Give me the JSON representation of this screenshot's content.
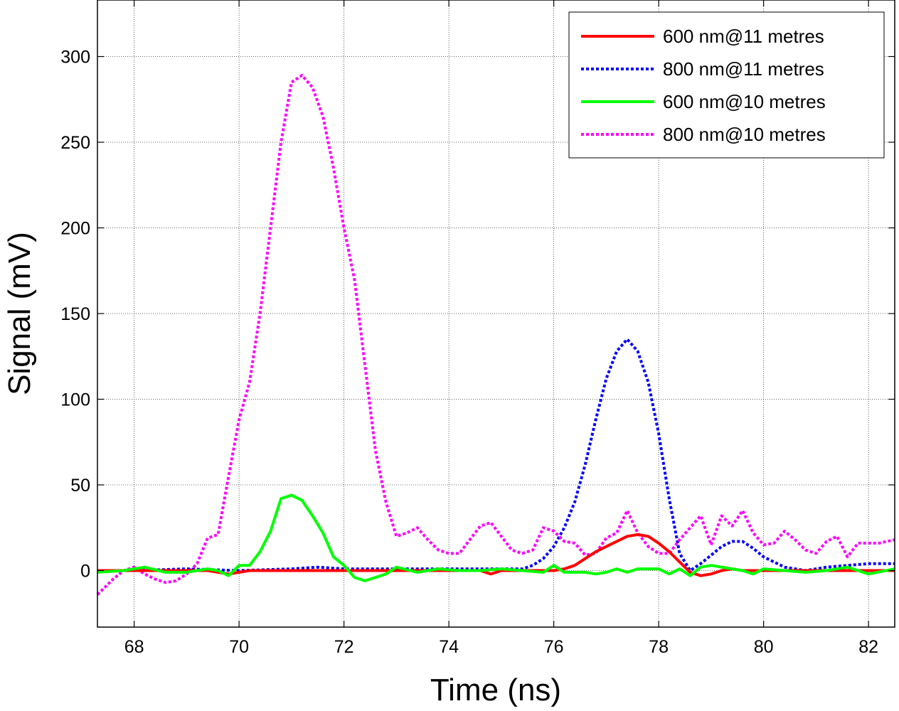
{
  "chart_data": {
    "type": "line",
    "title": "",
    "xlabel": "Time (ns)",
    "ylabel": "Signal (mV)",
    "xlim": [
      67.3,
      82.5
    ],
    "ylim": [
      -33,
      333
    ],
    "xticks": [
      68,
      70,
      72,
      74,
      76,
      78,
      80,
      82
    ],
    "yticks": [
      0,
      50,
      100,
      150,
      200,
      250,
      300
    ],
    "grid": true,
    "legend_position": "top-right",
    "series": [
      {
        "name": "600 nm@11 metres",
        "color": "#ff0000",
        "style": "solid",
        "x": [
          67.3,
          68.0,
          69.0,
          69.4,
          69.8,
          70.2,
          71.0,
          72.0,
          73.0,
          74.0,
          74.6,
          74.8,
          75.0,
          76.0,
          76.2,
          76.4,
          76.6,
          76.8,
          77.0,
          77.2,
          77.4,
          77.6,
          77.8,
          78.0,
          78.2,
          78.4,
          78.6,
          78.8,
          79.0,
          79.2,
          79.4,
          79.6,
          80.0,
          81.0,
          82.0,
          82.5
        ],
        "y": [
          0,
          0,
          0,
          0,
          -2,
          0,
          0,
          0,
          0,
          0,
          0,
          -2,
          0,
          0,
          1,
          3,
          7,
          11,
          14,
          17,
          20,
          21,
          20,
          16,
          11,
          5,
          -1,
          -3,
          -2,
          0,
          1,
          0,
          0,
          0,
          0,
          0
        ]
      },
      {
        "name": "800 nm@11 metres",
        "color": "#0000ff",
        "style": "dotted",
        "x": [
          67.3,
          68.0,
          69.0,
          70.0,
          71.0,
          71.5,
          72.0,
          73.0,
          74.0,
          75.0,
          75.4,
          75.6,
          75.8,
          76.0,
          76.2,
          76.4,
          76.6,
          76.8,
          77.0,
          77.2,
          77.4,
          77.6,
          77.8,
          78.0,
          78.2,
          78.4,
          78.6,
          78.8,
          79.0,
          79.2,
          79.4,
          79.6,
          79.8,
          80.0,
          80.4,
          80.8,
          81.2,
          81.6,
          82.0,
          82.5
        ],
        "y": [
          0,
          0,
          1,
          0,
          1,
          2,
          1,
          1,
          1,
          1,
          1,
          3,
          7,
          14,
          25,
          40,
          62,
          88,
          112,
          128,
          135,
          128,
          110,
          80,
          42,
          10,
          0,
          4,
          9,
          14,
          17,
          17,
          13,
          8,
          2,
          0,
          2,
          3,
          4,
          4
        ]
      },
      {
        "name": "600 nm@10 metres",
        "color": "#00ff00",
        "style": "solid",
        "x": [
          67.3,
          67.8,
          68.2,
          68.6,
          69.0,
          69.4,
          69.6,
          69.8,
          70.0,
          70.2,
          70.4,
          70.6,
          70.8,
          71.0,
          71.2,
          71.4,
          71.6,
          71.8,
          72.0,
          72.2,
          72.4,
          72.6,
          72.8,
          73.0,
          73.4,
          73.8,
          74.2,
          74.6,
          75.0,
          75.4,
          75.8,
          76.0,
          76.2,
          76.6,
          76.8,
          77.0,
          77.2,
          77.4,
          77.6,
          78.0,
          78.2,
          78.4,
          78.6,
          78.8,
          79.0,
          79.2,
          79.6,
          79.8,
          80.0,
          80.4,
          80.8,
          81.2,
          81.6,
          82.0,
          82.5
        ],
        "y": [
          -1,
          0,
          2,
          -1,
          -1,
          1,
          0,
          -3,
          3,
          3,
          11,
          23,
          42,
          44,
          41,
          32,
          22,
          8,
          3,
          -4,
          -6,
          -4,
          -2,
          2,
          -1,
          1,
          0,
          0,
          1,
          0,
          -1,
          3,
          -1,
          -1,
          -2,
          -1,
          1,
          -1,
          1,
          1,
          -2,
          1,
          -3,
          2,
          3,
          2,
          0,
          -2,
          1,
          0,
          -1,
          0,
          2,
          -2,
          1
        ]
      },
      {
        "name": "800 nm@10 metres",
        "color": "#ff00ff",
        "style": "dotted",
        "x": [
          67.3,
          67.6,
          67.8,
          68.0,
          68.2,
          68.4,
          68.6,
          68.8,
          69.0,
          69.2,
          69.4,
          69.6,
          69.8,
          70.0,
          70.2,
          70.4,
          70.6,
          70.8,
          71.0,
          71.2,
          71.4,
          71.6,
          71.8,
          72.0,
          72.2,
          72.4,
          72.6,
          72.8,
          73.0,
          73.2,
          73.4,
          73.6,
          73.8,
          74.0,
          74.2,
          74.4,
          74.6,
          74.8,
          75.0,
          75.2,
          75.4,
          75.6,
          75.8,
          76.0,
          76.2,
          76.4,
          76.6,
          76.8,
          77.0,
          77.2,
          77.4,
          77.6,
          77.8,
          78.0,
          78.2,
          78.4,
          78.6,
          78.8,
          79.0,
          79.2,
          79.4,
          79.6,
          79.8,
          80.0,
          80.2,
          80.4,
          80.6,
          80.8,
          81.0,
          81.2,
          81.4,
          81.6,
          81.8,
          82.0,
          82.2,
          82.5
        ],
        "y": [
          -14,
          -5,
          0,
          2,
          -2,
          -5,
          -7,
          -6,
          -2,
          4,
          19,
          21,
          55,
          88,
          110,
          150,
          200,
          250,
          285,
          289,
          282,
          265,
          235,
          200,
          170,
          120,
          70,
          40,
          20,
          22,
          25,
          18,
          12,
          10,
          10,
          18,
          26,
          28,
          20,
          12,
          10,
          12,
          25,
          23,
          17,
          16,
          9,
          10,
          19,
          22,
          35,
          22,
          14,
          10,
          10,
          18,
          25,
          32,
          15,
          32,
          26,
          35,
          22,
          15,
          16,
          23,
          18,
          12,
          10,
          17,
          20,
          8,
          16,
          16,
          16,
          18
        ]
      }
    ]
  }
}
